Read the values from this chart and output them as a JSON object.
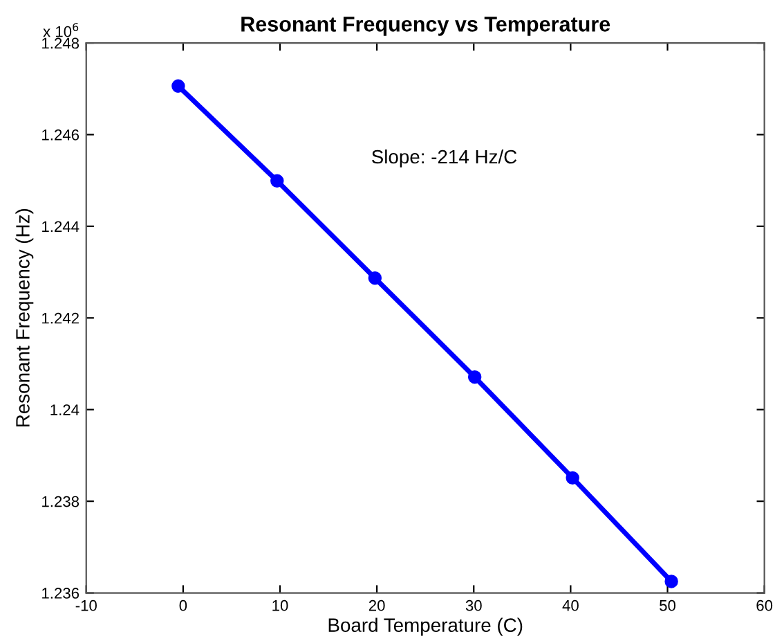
{
  "chart_data": {
    "type": "line",
    "title": "Resonant Frequency vs Temperature",
    "xlabel": "Board Temperature (C)",
    "ylabel": "Resonant Frequency (Hz)",
    "x": [
      -0.5,
      9.7,
      19.8,
      30.1,
      40.2,
      50.4
    ],
    "series": [
      {
        "color": "#0000ff",
        "values": [
          1.24706,
          1.24499,
          1.24287,
          1.24071,
          1.23851,
          1.23625
        ]
      }
    ],
    "xlim": [
      -10,
      60
    ],
    "xticks": [
      -10,
      0,
      10,
      20,
      30,
      40,
      50,
      60
    ],
    "ylim": [
      1.236,
      1.248
    ],
    "yticks": [
      1.236,
      1.238,
      1.24,
      1.242,
      1.244,
      1.246,
      1.248
    ],
    "annotations": [
      "x 10$^{6}$",
      "Slope: -214 Hz/C"
    ],
    "marker": "circle",
    "line_style": "solid",
    "grid": false,
    "legend": false
  }
}
